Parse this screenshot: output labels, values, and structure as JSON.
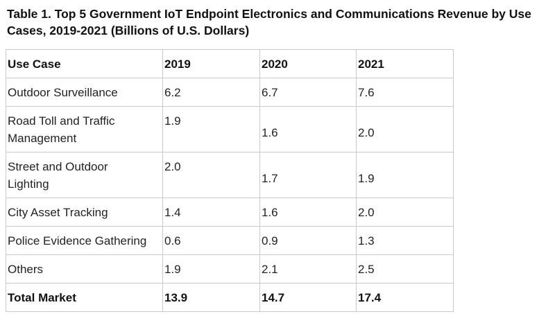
{
  "caption": "Table 1. Top 5 Government IoT Endpoint Electronics and Communications Revenue by Use Cases, 2019-2021 (Billions of U.S. Dollars)",
  "table": {
    "headers": [
      "Use Case",
      "2019",
      "2020",
      "2021"
    ],
    "rows": [
      {
        "use_case": "Outdoor Surveillance",
        "y2019": "6.2",
        "y2020": "6.7",
        "y2021": "7.6"
      },
      {
        "use_case_line1": "Road Toll and Traffic",
        "use_case_line2": "Management",
        "y2019": "1.9",
        "y2020": "1.6",
        "y2021": "2.0"
      },
      {
        "use_case_line1": "Street and Outdoor",
        "use_case_line2": "Lighting",
        "y2019": "2.0",
        "y2020": "1.7",
        "y2021": "1.9"
      },
      {
        "use_case": "City Asset Tracking",
        "y2019": "1.4",
        "y2020": "1.6",
        "y2021": "2.0"
      },
      {
        "use_case": "Police Evidence Gathering",
        "y2019": "0.6",
        "y2020": "0.9",
        "y2021": "1.3"
      },
      {
        "use_case": "Others",
        "y2019": "1.9",
        "y2020": "2.1",
        "y2021": "2.5"
      }
    ],
    "total": {
      "label": "Total Market",
      "y2019": "13.9",
      "y2020": "14.7",
      "y2021": "17.4"
    }
  }
}
